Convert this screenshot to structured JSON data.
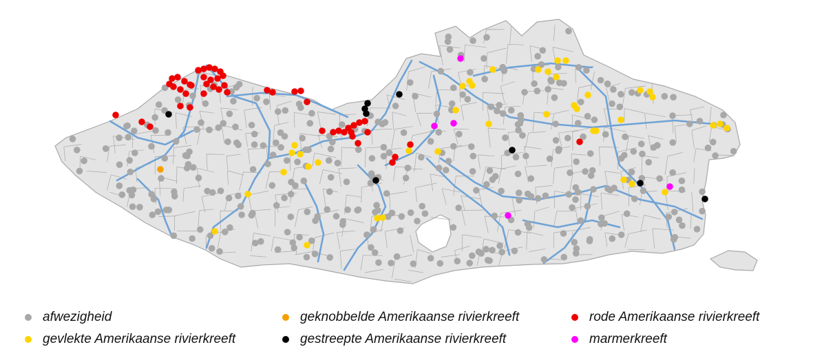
{
  "map": {
    "region": "Flanders",
    "colors": {
      "land": "#e4e4e4",
      "border": "#a8a8a8",
      "river": "#6fa3d6",
      "afwezigheid": "#a8a8a8",
      "geknobbeld": "#f5a000",
      "rood": "#ee0000",
      "gevlekt": "#ffd400",
      "gestreept": "#000000",
      "marmer": "#ff00ff"
    }
  },
  "legend": [
    {
      "key": "afwezigheid",
      "label": "afwezigheid",
      "color": "#a8a8a8"
    },
    {
      "key": "geknobbeld",
      "label": "geknobbelde Amerikaanse rivierkreeft",
      "color": "#f5a000"
    },
    {
      "key": "rood",
      "label": "rode Amerikaanse rivierkreeft",
      "color": "#ee0000"
    },
    {
      "key": "gevlekt",
      "label": "gevlekte Amerikaanse rivierkreeft",
      "color": "#ffd400"
    },
    {
      "key": "gestreept",
      "label": "gestreepte Amerikaanse rivierkreeft",
      "color": "#000000"
    },
    {
      "key": "marmer",
      "label": "marmerkreeft",
      "color": "#ff00ff"
    }
  ]
}
